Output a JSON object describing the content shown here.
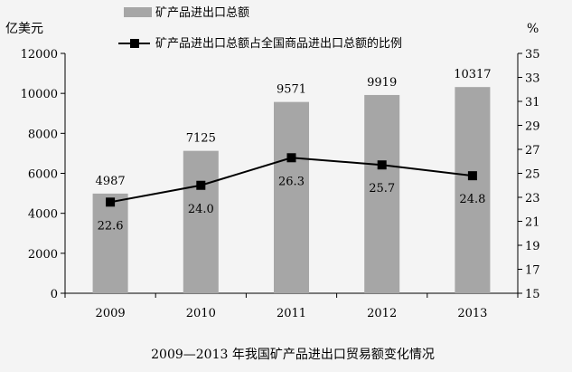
{
  "chart_data": {
    "type": "bar",
    "title": "2009—2013 年我国矿产品进出口贸易额变化情况",
    "categories": [
      "2009",
      "2010",
      "2011",
      "2012",
      "2013"
    ],
    "series": [
      {
        "name": "矿产品进出口总额",
        "kind": "bar",
        "axis": "left",
        "values": [
          4987,
          7125,
          9571,
          9919,
          10317
        ],
        "data_labels": [
          "4987",
          "7125",
          "9571",
          "9919",
          "10317"
        ],
        "color": "#a6a6a6"
      },
      {
        "name": "矿产品进出口总额占全国商品进出口总额的比例",
        "kind": "line",
        "axis": "right",
        "values": [
          22.6,
          24.0,
          26.3,
          25.7,
          24.8
        ],
        "data_labels": [
          "22.6",
          "24.0",
          "26.3",
          "25.7",
          "24.8"
        ],
        "color": "#000000"
      }
    ],
    "y_left": {
      "label": "亿美元",
      "ylim": [
        0,
        12000
      ],
      "ticks": [
        "0",
        "2000",
        "4000",
        "6000",
        "8000",
        "10000",
        "12000"
      ]
    },
    "y_right": {
      "label": "%",
      "ylim": [
        15,
        35
      ],
      "ticks": [
        "15",
        "17",
        "19",
        "21",
        "23",
        "25",
        "27",
        "29",
        "31",
        "33",
        "35"
      ]
    },
    "grid": false,
    "legend_position": "top"
  }
}
